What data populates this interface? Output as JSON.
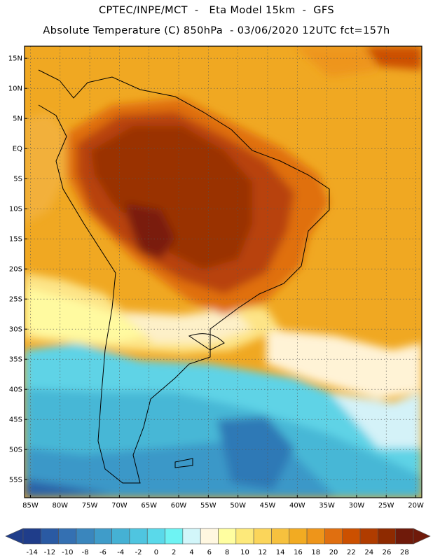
{
  "header": {
    "line1": "CPTEC/INPE/MCT  -   Eta Model 15km  -  GFS",
    "line2": "Absolute Temperature (C) 850hPa  - 03/06/2020 12UTC fct=157h"
  },
  "map": {
    "region": "South America",
    "projection": "lat-lon",
    "lon_range": [
      -86,
      -19
    ],
    "lat_range": [
      -58,
      17
    ],
    "gridlines": "dotted",
    "lat_labels": [
      "15N",
      "10N",
      "5N",
      "EQ",
      "5S",
      "10S",
      "15S",
      "20S",
      "25S",
      "30S",
      "35S",
      "40S",
      "45S",
      "50S",
      "55S"
    ],
    "lon_labels": [
      "85W",
      "80W",
      "75W",
      "70W",
      "65W",
      "60W",
      "55W",
      "50W",
      "45W",
      "40W",
      "35W",
      "30W",
      "25W",
      "20W"
    ]
  },
  "colorbar": {
    "ticks": [
      "-14",
      "-12",
      "-10",
      "-8",
      "-6",
      "-4",
      "-2",
      "0",
      "2",
      "4",
      "6",
      "8",
      "10",
      "12",
      "14",
      "16",
      "18",
      "20",
      "22",
      "24",
      "26",
      "28"
    ],
    "colors": [
      "#1f3d8a",
      "#2a5aa3",
      "#3470b2",
      "#3a86bd",
      "#3f9cc9",
      "#45b1d4",
      "#4fc5e0",
      "#5ad9ea",
      "#6ef3f3",
      "#d2f6fa",
      "#fff7e0",
      "#fffea0",
      "#fde97a",
      "#fbd55a",
      "#f6c13e",
      "#f2ab22",
      "#ee951a",
      "#e06f10",
      "#cc5000",
      "#b03c00",
      "#8e2a00",
      "#6f1a0a"
    ]
  }
}
